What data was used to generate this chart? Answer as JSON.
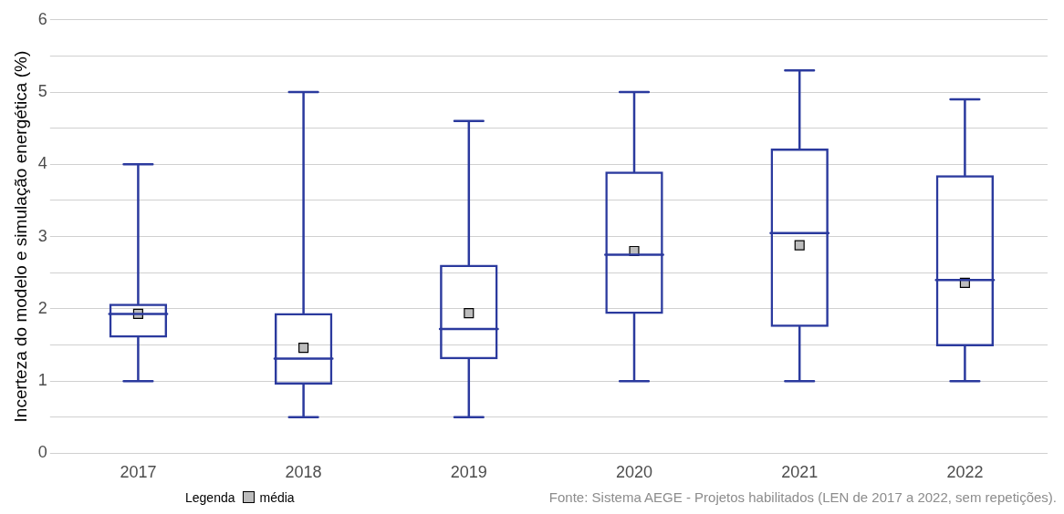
{
  "chart_data": {
    "type": "box",
    "ylabel": "Incerteza do modelo e simulação energética (%)",
    "categories": [
      "2017",
      "2018",
      "2019",
      "2020",
      "2021",
      "2022"
    ],
    "ylim": [
      0,
      6
    ],
    "yticks": [
      0,
      {
        "value": 0.5,
        "label": null
      },
      1,
      {
        "value": 1.5,
        "label": null
      },
      2,
      {
        "value": 2.5,
        "label": null
      },
      3,
      {
        "value": 3.5,
        "label": null
      },
      4,
      {
        "value": 4.5,
        "label": null
      },
      5,
      {
        "value": 5.5,
        "label": null
      },
      6
    ],
    "grid": "y",
    "legend": "bottom left",
    "legend_title": "Legenda",
    "series": [
      {
        "color": "#2b3a9e",
        "boxes": [
          {
            "low": 1,
            "q1": 1.6,
            "median": 1.93,
            "q3": 2.07,
            "high": 4
          },
          {
            "low": 0.5,
            "q1": 0.95,
            "median": 1.31,
            "q3": 1.94,
            "high": 5
          },
          {
            "low": 0.5,
            "q1": 1.3,
            "median": 1.72,
            "q3": 2.61,
            "high": 4.6
          },
          {
            "low": 1,
            "q1": 1.93,
            "median": 2.75,
            "q3": 3.9,
            "high": 5
          },
          {
            "low": 1,
            "q1": 1.75,
            "median": 3.05,
            "q3": 4.22,
            "high": 5.3
          },
          {
            "low": 1,
            "q1": 1.48,
            "median": 2.4,
            "q3": 3.85,
            "high": 4.9
          }
        ]
      },
      {
        "type": "scatter",
        "name": "média",
        "color": "#bdbdbd",
        "marker": "square",
        "values": [
          1.93,
          1.46,
          1.94,
          2.8,
          2.88,
          2.36
        ]
      }
    ],
    "annotations": [
      "Fonte: Sistema AEGE - Projetos habilitados (LEN de 2017 a 2022, sem repetições)."
    ]
  }
}
